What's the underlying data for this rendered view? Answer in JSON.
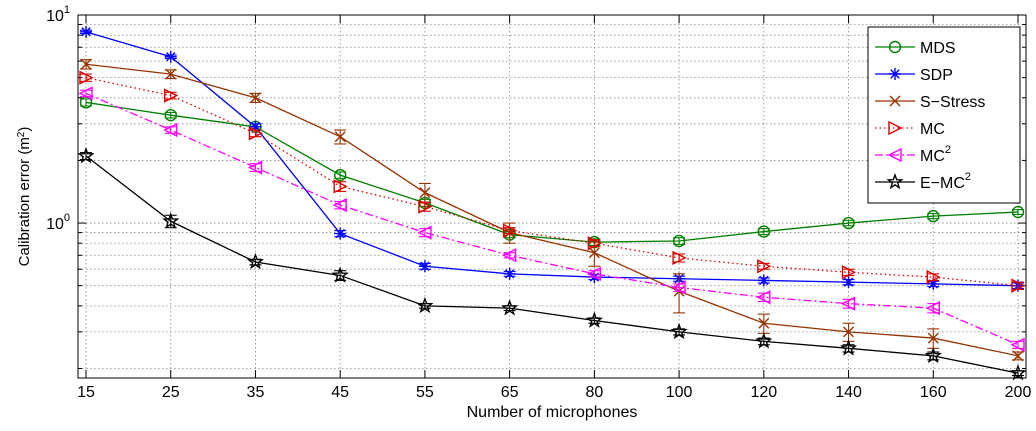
{
  "chart_data": {
    "type": "line",
    "title": "",
    "xlabel": "Number of microphones",
    "ylabel": "Calibration error (m²)",
    "ylabel_text": "Calibration error (m",
    "ylabel_sup": "2",
    "ylabel_close": ")",
    "yscale": "log",
    "ylim": [
      0.18,
      10
    ],
    "y_ticks": [
      {
        "base": "10",
        "exp": "0",
        "value": 1
      },
      {
        "base": "10",
        "exp": "1",
        "value": 10
      }
    ],
    "categories": [
      "15",
      "25",
      "35",
      "45",
      "55",
      "65",
      "80",
      "100",
      "120",
      "140",
      "160",
      "200"
    ],
    "grid": true,
    "legend_position": "top-right",
    "series": [
      {
        "name": "MDS",
        "legend_sup": "",
        "color": "#008000",
        "dash": "solid",
        "marker": "circle",
        "values": [
          3.8,
          3.3,
          2.9,
          1.7,
          1.25,
          0.88,
          0.81,
          0.82,
          0.91,
          1.0,
          1.08,
          1.13
        ],
        "err": [
          0.15,
          0.1,
          0.1,
          0.06,
          0.05,
          0.03,
          0.03,
          0.03,
          0.03,
          0.03,
          0.03,
          0.03
        ]
      },
      {
        "name": "SDP",
        "legend_sup": "",
        "color": "#0000ff",
        "dash": "solid",
        "marker": "star",
        "values": [
          8.3,
          6.3,
          2.9,
          0.89,
          0.62,
          0.57,
          0.55,
          0.54,
          0.53,
          0.52,
          0.51,
          0.5
        ],
        "err": [
          0.15,
          0.12,
          0.1,
          0.03,
          0.02,
          0.015,
          0.015,
          0.015,
          0.015,
          0.015,
          0.015,
          0.015
        ]
      },
      {
        "name": "S−Stress",
        "legend_sup": "",
        "color": "#993300",
        "dash": "solid",
        "marker": "x",
        "values": [
          5.8,
          5.2,
          4.0,
          2.6,
          1.4,
          0.9,
          0.72,
          0.47,
          0.33,
          0.3,
          0.28,
          0.23
        ],
        "err": [
          0.3,
          0.25,
          0.2,
          0.2,
          0.15,
          0.1,
          0.1,
          0.1,
          0.035,
          0.03,
          0.03,
          0.01
        ]
      },
      {
        "name": "MC",
        "legend_sup": "",
        "color": "#dd0000",
        "dash": "dotted",
        "marker": "triangle-right",
        "values": [
          5.0,
          4.1,
          2.7,
          1.5,
          1.2,
          0.92,
          0.8,
          0.68,
          0.62,
          0.58,
          0.55,
          0.5
        ],
        "err": [
          0.2,
          0.15,
          0.1,
          0.08,
          0.06,
          0.03,
          0.03,
          0.03,
          0.02,
          0.02,
          0.02,
          0.02
        ]
      },
      {
        "name": "MC",
        "legend_sup": "2",
        "color": "#ff00ff",
        "dash": "dashdot",
        "marker": "triangle-left",
        "values": [
          4.2,
          2.8,
          1.85,
          1.22,
          0.9,
          0.7,
          0.57,
          0.49,
          0.44,
          0.41,
          0.39,
          0.26
        ],
        "err": [
          0.15,
          0.1,
          0.08,
          0.05,
          0.04,
          0.02,
          0.02,
          0.02,
          0.02,
          0.02,
          0.02,
          0.01
        ]
      },
      {
        "name": "E−MC",
        "legend_sup": "2",
        "color": "#000000",
        "dash": "solid",
        "marker": "pentagram",
        "values": [
          2.1,
          1.02,
          0.65,
          0.56,
          0.4,
          0.39,
          0.34,
          0.3,
          0.27,
          0.25,
          0.23,
          0.19
        ],
        "err": [
          0.08,
          0.07,
          0.02,
          0.03,
          0.01,
          0.01,
          0.01,
          0.01,
          0.01,
          0.01,
          0.01,
          0.005
        ]
      }
    ]
  }
}
